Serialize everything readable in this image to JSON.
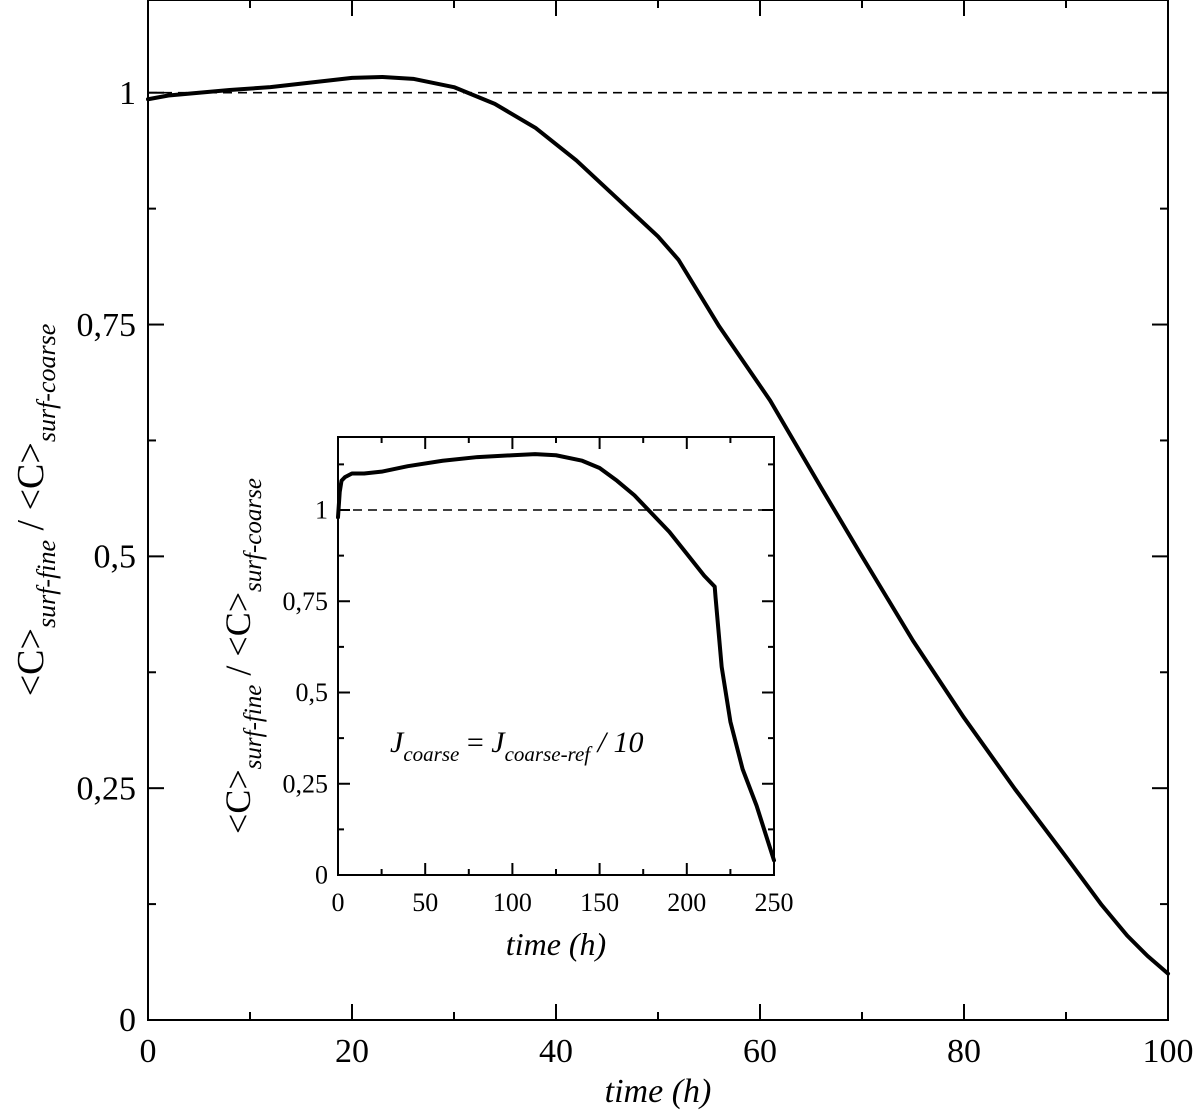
{
  "chart_data": [
    {
      "type": "line",
      "xlabel": "time (h)",
      "ylabel": {
        "lhs": "<C>",
        "lhs_sub": "surf-fine",
        "sep": " / ",
        "rhs": "<C>",
        "rhs_sub": "surf-coarse"
      },
      "xlim": [
        0,
        100
      ],
      "ylim": [
        0,
        1.1
      ],
      "xticks": [
        {
          "value": 0,
          "label": "0"
        },
        {
          "value": 20,
          "label": "20"
        },
        {
          "value": 40,
          "label": "40"
        },
        {
          "value": 60,
          "label": "60"
        },
        {
          "value": 80,
          "label": "80"
        },
        {
          "value": 100,
          "label": "100"
        }
      ],
      "xminor": [
        10,
        30,
        50,
        70,
        90
      ],
      "yticks": [
        {
          "value": 0,
          "label": "0"
        },
        {
          "value": 0.25,
          "label": "0,25"
        },
        {
          "value": 0.5,
          "label": "0,5"
        },
        {
          "value": 0.75,
          "label": "0,75"
        },
        {
          "value": 1,
          "label": "1"
        }
      ],
      "yminor": [
        0.125,
        0.375,
        0.625,
        0.875
      ],
      "reference_line": {
        "y": 1.0,
        "style": "dashed"
      },
      "grid": false,
      "series": [
        {
          "x": [
            0,
            2,
            5,
            8,
            12,
            16,
            20,
            23,
            26,
            30,
            34,
            38,
            42,
            46,
            50,
            52,
            56,
            61,
            66,
            70,
            75,
            80,
            85,
            90,
            93.5,
            96,
            98,
            100
          ],
          "y": [
            0.993,
            0.997,
            1.0,
            1.003,
            1.006,
            1.011,
            1.016,
            1.017,
            1.015,
            1.006,
            0.988,
            0.962,
            0.927,
            0.886,
            0.845,
            0.82,
            0.748,
            0.668,
            0.574,
            0.5,
            0.409,
            0.326,
            0.249,
            0.176,
            0.124,
            0.091,
            0.069,
            0.05
          ]
        }
      ]
    },
    {
      "type": "line",
      "role": "inset",
      "xlabel": "time (h)",
      "ylabel": {
        "lhs": "<C>",
        "lhs_sub": "surf-fine",
        "sep": " / ",
        "rhs": "<C>",
        "rhs_sub": "surf-coarse"
      },
      "annotation": {
        "J1": "J",
        "J1_sub": "coarse",
        "eq": " = ",
        "J2": "J",
        "J2_sub": "coarse-ref",
        "tail": " / 10"
      },
      "xlim": [
        0,
        250
      ],
      "ylim": [
        0,
        1.2
      ],
      "xticks": [
        {
          "value": 0,
          "label": "0"
        },
        {
          "value": 50,
          "label": "50"
        },
        {
          "value": 100,
          "label": "100"
        },
        {
          "value": 150,
          "label": "150"
        },
        {
          "value": 200,
          "label": "200"
        },
        {
          "value": 250,
          "label": "250"
        }
      ],
      "xminor": [
        25,
        75,
        125,
        175,
        225
      ],
      "yticks": [
        {
          "value": 0,
          "label": "0"
        },
        {
          "value": 0.25,
          "label": "0,25"
        },
        {
          "value": 0.5,
          "label": "0,5"
        },
        {
          "value": 0.75,
          "label": "0,75"
        },
        {
          "value": 1,
          "label": "1"
        }
      ],
      "yminor": [
        0.125,
        0.375,
        0.625,
        0.875,
        1.125
      ],
      "reference_line": {
        "y": 1.0,
        "style": "dashed"
      },
      "grid": false,
      "series": [
        {
          "x": [
            0,
            1,
            2,
            4,
            8,
            15,
            25,
            40,
            60,
            80,
            100,
            113,
            125,
            140,
            150,
            160,
            170,
            180,
            190,
            200,
            210,
            216,
            216.5,
            220,
            225,
            232,
            240,
            250
          ],
          "y": [
            0.98,
            1.05,
            1.08,
            1.09,
            1.1,
            1.1,
            1.105,
            1.12,
            1.135,
            1.145,
            1.15,
            1.153,
            1.15,
            1.135,
            1.115,
            1.08,
            1.04,
            0.99,
            0.94,
            0.88,
            0.82,
            0.79,
            0.76,
            0.57,
            0.42,
            0.29,
            0.19,
            0.04
          ]
        }
      ]
    }
  ]
}
